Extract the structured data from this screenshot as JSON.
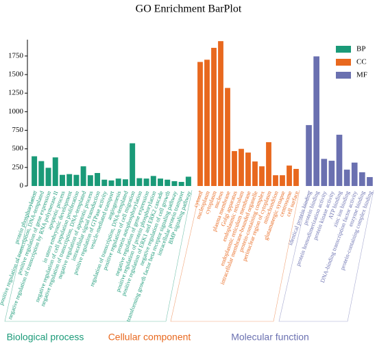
{
  "chart_data": {
    "type": "bar",
    "title": "GO Enrichment BarPlot",
    "ylim": [
      0,
      1970
    ],
    "yticks": [
      0,
      250,
      500,
      750,
      1000,
      1250,
      1500,
      1750
    ],
    "legend": "upper right",
    "series": [
      {
        "name": "BP",
        "group_label": "Biological process",
        "color": "#1a9a78",
        "categories": [
          "protein phosphorylation",
          "positive regulation of transcription, DNA-templated",
          "positive regulation of gene expression",
          "negative regulation of transcription by RNA polymerase II",
          "apoptotic process",
          "in utero embryonic development",
          "negative regulation of cell population proliferation",
          "negative regulation of transcription, DNA-templated",
          "negative regulation of apoptotic process",
          "intracellular signal transduction",
          "positive regulation of GTPase activity",
          "vesicle-mediated transport",
          "angiogenesis",
          "regulation of transcription, DNA-templated",
          "positive regulation of cell migration",
          "protein autophosphorylation",
          "negative regulation of gene expression",
          "positive regulation of protein phosphorylation",
          "positive regulation of ERK1 and ERK2 cascade",
          "negative regulation of cell growth",
          "transforming growth factor beta receptor signaling pathway",
          "intracellular protein transport",
          "BMP signaling pathway"
        ],
        "values": [
          400,
          335,
          245,
          385,
          150,
          160,
          150,
          265,
          145,
          175,
          85,
          75,
          100,
          90,
          575,
          105,
          100,
          135,
          100,
          85,
          65,
          55,
          125
        ]
      },
      {
        "name": "CC",
        "group_label": "Cellular component",
        "color": "#e8681e",
        "categories": [
          "cytosol",
          "nucleoplasm",
          "cytoplasm",
          "nucleus",
          "plasma membrane",
          "Golgi apparatus",
          "endoplasmic reticulum",
          "endoplasmic reticulum membrane",
          "intracellular membrane-bounded organelle",
          "protein-containing complex",
          "perinuclear region of cytoplasm",
          "mitochondrion",
          "glutamatergic synapse",
          "centrosome",
          "cell surface"
        ],
        "values": [
          1670,
          1700,
          1860,
          1950,
          1320,
          470,
          500,
          450,
          330,
          265,
          590,
          145,
          145,
          275,
          230
        ]
      },
      {
        "name": "MF",
        "group_label": "Molecular function",
        "color": "#6a70b0",
        "categories": [
          "identical protein binding",
          "protein binding",
          "protein homodimerization activity",
          "protein kinase activity",
          "ATP binding",
          "zinc ion binding",
          "DNA-binding transcription factor activity",
          "enzyme binding",
          "protein-containing complex binding"
        ],
        "values": [
          820,
          1745,
          365,
          340,
          690,
          220,
          315,
          185,
          120
        ]
      }
    ]
  }
}
